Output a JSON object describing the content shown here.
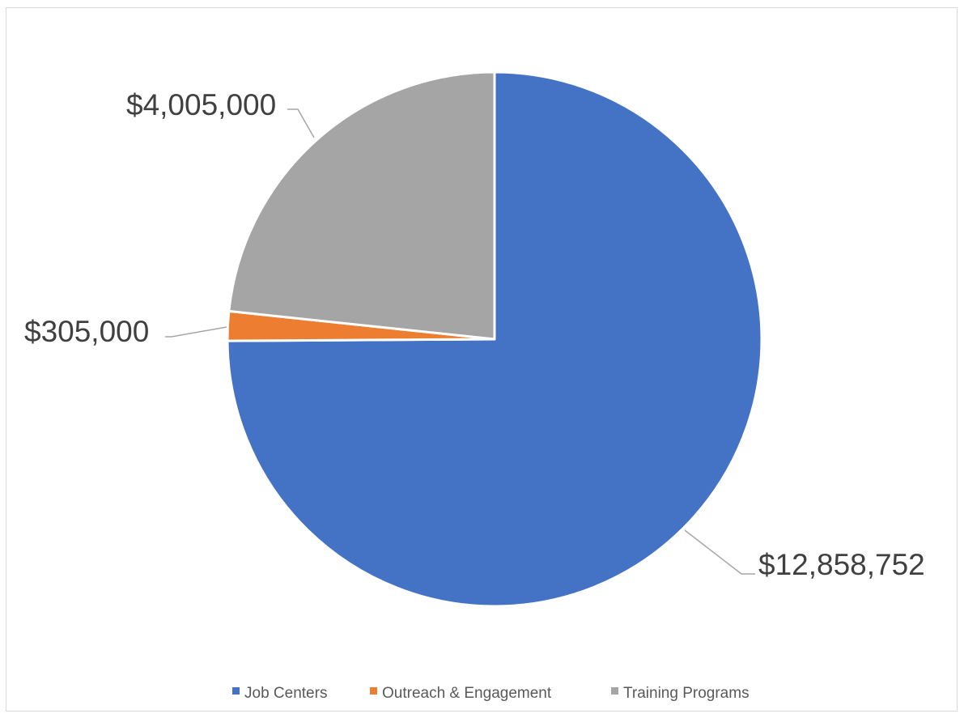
{
  "chart_data": {
    "type": "pie",
    "title": "",
    "categories": [
      "Job Centers",
      "Outreach & Engagement",
      "Training Programs"
    ],
    "values": [
      12858752,
      305000,
      4005000
    ],
    "data_labels": [
      "$12,858,752",
      "$305,000",
      "$4,005,000"
    ],
    "colors": [
      "#4472c4",
      "#ed7d31",
      "#a5a5a5"
    ],
    "legend_position": "bottom",
    "start_angle": "12 o'clock, clockwise"
  }
}
